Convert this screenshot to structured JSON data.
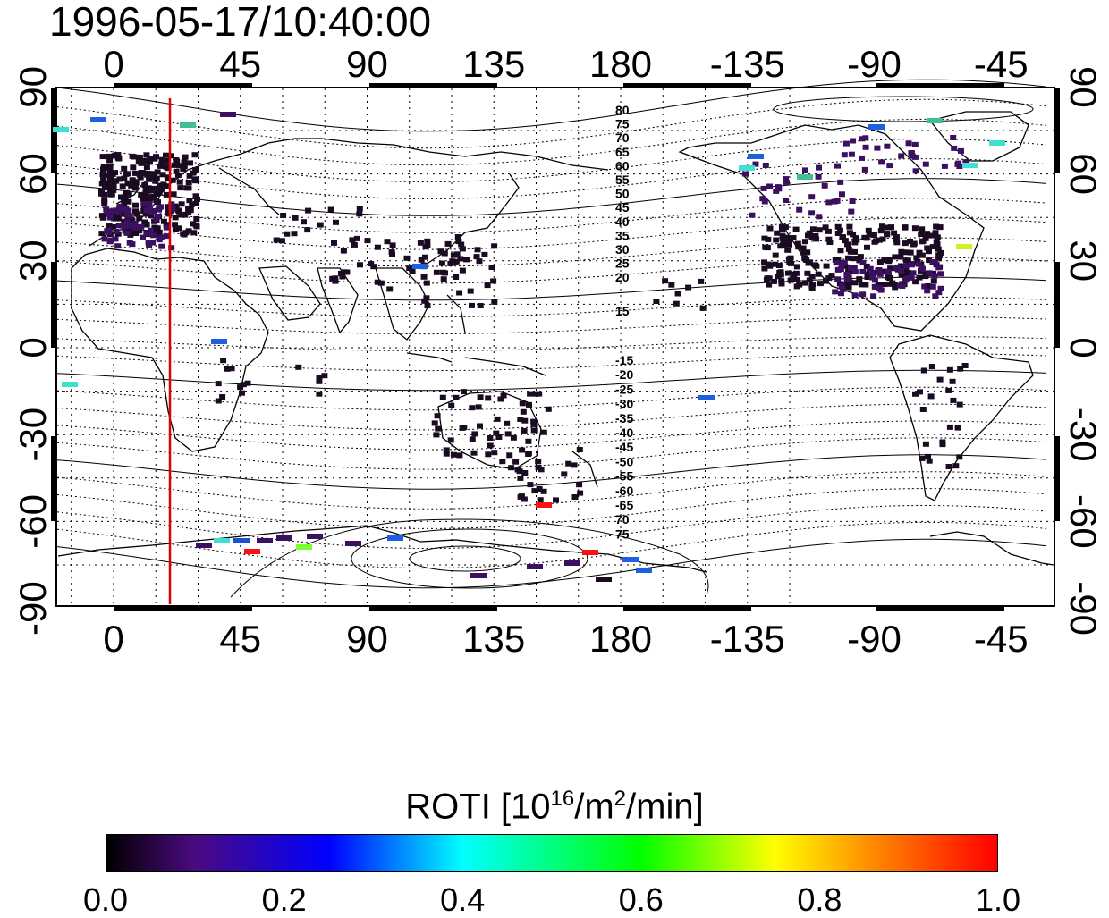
{
  "title": "1996-05-17/10:40:00",
  "top_axis_labels": [
    "0",
    "45",
    "90",
    "135",
    "180",
    "-135",
    "-90",
    "-45"
  ],
  "bottom_axis_labels": [
    "0",
    "45",
    "90",
    "135",
    "180",
    "-135",
    "-90",
    "-45"
  ],
  "left_axis_labels": [
    "90",
    "60",
    "30",
    "0",
    "-30",
    "-60",
    "-90"
  ],
  "right_axis_labels": [
    "90",
    "60",
    "30",
    "0",
    "-30",
    "-60",
    "-90"
  ],
  "north_contour_labels": [
    "80",
    "75",
    "70",
    "65",
    "60",
    "55",
    "50",
    "45",
    "40",
    "35",
    "30",
    "25",
    "20",
    "15"
  ],
  "south_contour_labels": [
    "-15",
    "-20",
    "-25",
    "-30",
    "-35",
    "-40",
    "-45",
    "-50",
    "-55",
    "-60",
    "-65",
    "70",
    "75"
  ],
  "colorbar": {
    "title_main": "ROTI  [10",
    "title_sup1": "16",
    "title_mid": "/m",
    "title_sup2": "2",
    "title_end": "/min]",
    "ticks": [
      "0.0",
      "0.2",
      "0.4",
      "0.6",
      "0.8",
      "1.0"
    ],
    "min": 0.0,
    "max": 1.0
  },
  "colors": {
    "terminator_line": "#e00000",
    "frame": "#000000"
  },
  "terminator_longitude": 20
}
